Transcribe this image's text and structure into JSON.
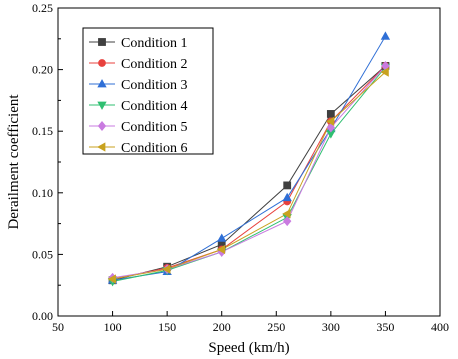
{
  "chart_data": {
    "type": "line",
    "xlabel": "Speed (km/h)",
    "ylabel": "Derailment coefficient",
    "xlim": [
      50,
      400
    ],
    "ylim": [
      0.0,
      0.25
    ],
    "x_ticks": [
      "50",
      "100",
      "150",
      "200",
      "250",
      "300",
      "350",
      "400"
    ],
    "y_ticks": [
      "0.00",
      "0.05",
      "0.10",
      "0.15",
      "0.20",
      "0.25"
    ],
    "x": [
      100,
      150,
      200,
      260,
      300,
      350
    ],
    "legend_position": "top-left",
    "grid": false,
    "series": [
      {
        "name": "Condition 1",
        "color": "#404040",
        "marker": "square",
        "values": [
          0.029,
          0.04,
          0.058,
          0.106,
          0.164,
          0.203
        ]
      },
      {
        "name": "Condition 2",
        "color": "#e8413d",
        "marker": "circle",
        "values": [
          0.03,
          0.039,
          0.054,
          0.093,
          0.158,
          0.203
        ]
      },
      {
        "name": "Condition 3",
        "color": "#2f6fd6",
        "marker": "triangle-up",
        "values": [
          0.029,
          0.036,
          0.063,
          0.096,
          0.152,
          0.227
        ]
      },
      {
        "name": "Condition 4",
        "color": "#2fbf71",
        "marker": "triangle-down",
        "values": [
          0.028,
          0.037,
          0.052,
          0.08,
          0.148,
          0.202
        ]
      },
      {
        "name": "Condition 5",
        "color": "#c97be0",
        "marker": "diamond",
        "values": [
          0.031,
          0.038,
          0.052,
          0.077,
          0.153,
          0.203
        ]
      },
      {
        "name": "Condition 6",
        "color": "#c8a21f",
        "marker": "triangle-left",
        "values": [
          0.03,
          0.038,
          0.054,
          0.083,
          0.158,
          0.198
        ]
      }
    ]
  }
}
